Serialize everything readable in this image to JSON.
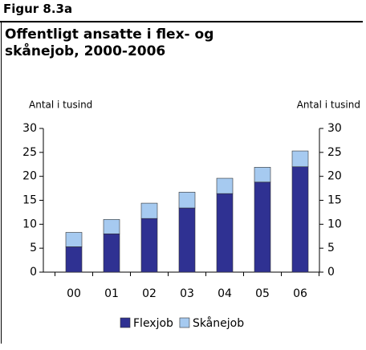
{
  "figure_label": "Figur 8.3a",
  "chart_data": {
    "type": "stacked_bar",
    "title": "Offentligt ansatte i flex- og skånejob, 2000-2006",
    "ylabel": "Antal i tusind",
    "y2label": "Antal i tusind",
    "categories": [
      "00",
      "01",
      "02",
      "03",
      "04",
      "05",
      "06"
    ],
    "series": [
      {
        "name": "Flexjob",
        "color": "#2f3192",
        "values": [
          5.3,
          8.0,
          11.2,
          13.4,
          16.4,
          18.8,
          22.0
        ]
      },
      {
        "name": "Skånejob",
        "color": "#a6caf0",
        "values": [
          3.0,
          3.0,
          3.2,
          3.3,
          3.2,
          3.1,
          3.3
        ]
      }
    ],
    "ylim": [
      0,
      30
    ],
    "yticks": [
      0,
      5,
      10,
      15,
      20,
      25,
      30
    ],
    "y2lim": [
      0,
      30
    ],
    "y2ticks": [
      0,
      5,
      10,
      15,
      20,
      25,
      30
    ],
    "grid": false,
    "legend": "bottom"
  }
}
